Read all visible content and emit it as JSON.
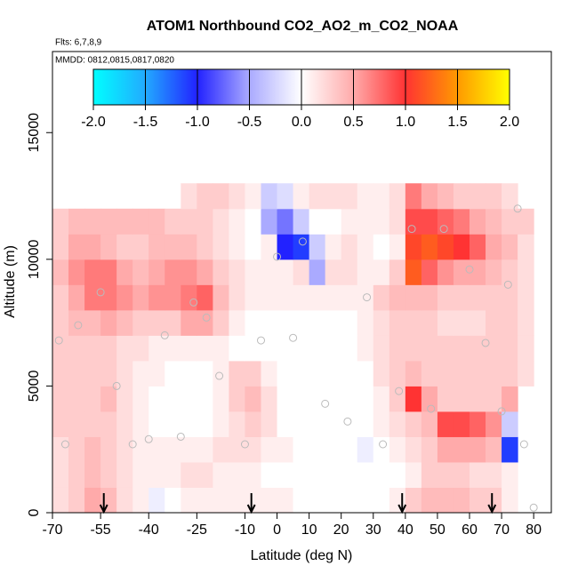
{
  "chart_data": {
    "type": "heatmap",
    "title": "ATOM1 Northbound CO2_AO2_m_CO2_NOAA",
    "subtitle": "Flts: 6,7,8,9",
    "annotation": "MMDD: 0812,0815,0817,0820",
    "x_label": "Latitude (deg N)",
    "y_label": "Altitude (m)",
    "xlim": [
      -70,
      85.5
    ],
    "ylim": [
      0,
      18200
    ],
    "xticks": [
      -70,
      -55,
      -40,
      -25,
      -10,
      0,
      10,
      20,
      30,
      40,
      50,
      60,
      70,
      80
    ],
    "yticks": [
      0,
      5000,
      10000,
      15000
    ],
    "x": [
      -67.5,
      -62.5,
      -57.5,
      -52.5,
      -47.5,
      -42.5,
      -37.5,
      -32.5,
      -27.5,
      -22.5,
      -17.5,
      -12.5,
      -7.5,
      -2.5,
      2.5,
      7.5,
      12.5,
      17.5,
      22.5,
      27.5,
      32.5,
      37.5,
      42.5,
      47.5,
      52.5,
      57.5,
      62.5,
      67.5,
      72.5,
      77.5
    ],
    "y": [
      500,
      1500,
      2500,
      3500,
      4500,
      5500,
      6500,
      7500,
      8500,
      9500,
      10500,
      11500,
      12500
    ],
    "z": [
      [
        0.2,
        0.3,
        0.5,
        0.4,
        0.2,
        0.1,
        -0.1,
        0,
        0.1,
        0.1,
        0.1,
        0.1,
        0.1,
        0.1,
        0.1,
        0,
        0,
        0,
        0,
        0,
        0,
        0.1,
        0.3,
        0.4,
        0.4,
        0.4,
        0.3,
        0.3,
        0.1,
        null
      ],
      [
        0.2,
        0.3,
        0.4,
        0.3,
        0.2,
        0.1,
        0.1,
        0.1,
        0.2,
        0.2,
        0.1,
        0.1,
        0.1,
        0,
        0,
        0,
        0,
        0,
        0,
        0,
        0,
        0,
        0.1,
        0.3,
        0.3,
        0.3,
        0.2,
        0.2,
        0.1,
        null
      ],
      [
        0.2,
        0.3,
        0.4,
        0.3,
        0.2,
        0.1,
        0.1,
        0.1,
        0.1,
        0.1,
        0.2,
        0.2,
        0.2,
        0.1,
        0.1,
        0,
        0,
        0,
        0,
        -0.1,
        0,
        0.1,
        0.2,
        0.3,
        0.5,
        0.5,
        0.5,
        0.4,
        -1.1,
        null
      ],
      [
        0.3,
        0.3,
        0.3,
        0.3,
        0.2,
        0.1,
        0,
        0,
        0,
        0,
        0.1,
        0.2,
        0.3,
        0.2,
        0,
        0,
        0,
        0,
        0,
        0,
        0.1,
        0.2,
        0.3,
        0.4,
        0.9,
        0.9,
        0.8,
        0.6,
        -0.3,
        null
      ],
      [
        0.3,
        0.3,
        0.3,
        0.4,
        0.2,
        0.1,
        0,
        0,
        0,
        0,
        0.1,
        0.3,
        0.4,
        0.2,
        0,
        0,
        0,
        0,
        0,
        0,
        0.1,
        0.3,
        1,
        0.5,
        0.3,
        0.3,
        0.3,
        0.3,
        0.5,
        null
      ],
      [
        0.3,
        0.3,
        0.3,
        0.3,
        0.2,
        0.1,
        0.1,
        0,
        0,
        0,
        0.1,
        0.3,
        0.3,
        0.1,
        0,
        0,
        0,
        0,
        0,
        0,
        0.2,
        0.3,
        0.4,
        0.3,
        0.3,
        0.3,
        0.3,
        0.3,
        0.3,
        0.2
      ],
      [
        0.3,
        0.3,
        0.3,
        0.3,
        0.2,
        0.2,
        0.1,
        0.1,
        0.1,
        0.1,
        0.1,
        0,
        0,
        0,
        0,
        0,
        0,
        0,
        0,
        0.1,
        0.2,
        0.3,
        0.3,
        0.3,
        0.3,
        0.3,
        0.3,
        0.3,
        0.3,
        0.2
      ],
      [
        0.3,
        0.4,
        0.4,
        0.5,
        0.4,
        0.3,
        0.3,
        0.3,
        0.5,
        0.5,
        0.3,
        0.1,
        0,
        0,
        0,
        0,
        0,
        0,
        0,
        0.1,
        0.2,
        0.3,
        0.3,
        0.3,
        0.2,
        0.2,
        0.2,
        0.3,
        0.3,
        0.2
      ],
      [
        0.3,
        0.5,
        0.7,
        0.7,
        0.6,
        0.5,
        0.6,
        0.6,
        0.7,
        0.8,
        0.4,
        0.2,
        0.1,
        0.1,
        0.1,
        0.1,
        0.1,
        0.1,
        0.1,
        0.1,
        0.3,
        0.4,
        0.4,
        0.4,
        0.3,
        0.3,
        0.3,
        0.3,
        0.3,
        0.2
      ],
      [
        0.4,
        0.6,
        0.7,
        0.7,
        0.5,
        0.4,
        0.5,
        0.6,
        0.6,
        0.5,
        0.3,
        0.2,
        0.1,
        0.1,
        0.1,
        0.2,
        -0.5,
        0.2,
        0.2,
        0.1,
        0.1,
        0.3,
        1.2,
        0.8,
        0.6,
        0.5,
        0.5,
        0.4,
        0.3,
        0.2
      ],
      [
        0.3,
        0.5,
        0.5,
        0.4,
        0.3,
        0.3,
        0.4,
        0.4,
        0.4,
        0.3,
        0.2,
        0.1,
        0,
        0.1,
        -1,
        -1.1,
        -0.3,
        0.1,
        0.2,
        0.1,
        0,
        0.1,
        1.1,
        1.2,
        1.1,
        1,
        0.8,
        0.5,
        0.4,
        0.2
      ],
      [
        0.3,
        0.4,
        0.4,
        0.4,
        0.4,
        0.4,
        0.4,
        0.3,
        0.3,
        0.3,
        0.2,
        0.1,
        0,
        -0.5,
        -0.7,
        -0.3,
        0,
        0,
        0.1,
        0.1,
        0.1,
        0.2,
        0.9,
        0.9,
        0.8,
        0.7,
        0.5,
        0.4,
        0.3,
        0.3
      ],
      [
        null,
        null,
        null,
        null,
        null,
        null,
        null,
        null,
        0.2,
        0.3,
        0.3,
        0.2,
        0.1,
        -0.3,
        -0.2,
        0.1,
        0.2,
        0.2,
        0.2,
        0.1,
        0.1,
        0.2,
        0.7,
        0.5,
        0.4,
        0.3,
        0.3,
        0.3,
        0.2,
        null
      ]
    ],
    "clim": [
      -2,
      2
    ],
    "colorscale": {
      "values": [
        -2,
        -1.5,
        -1,
        -0.5,
        0,
        0.5,
        1,
        1.5,
        2
      ],
      "colors": [
        "#00ffff",
        "#22aaff",
        "#2222ff",
        "#aaaaff",
        "#ffffff",
        "#ffaaaa",
        "#ff3333",
        "#ff9900",
        "#ffff00"
      ]
    },
    "colorbar_ticks": [
      {
        "value": -2,
        "label": "-2.0"
      },
      {
        "value": -1.5,
        "label": "-1.5"
      },
      {
        "value": -1,
        "label": "-1.0"
      },
      {
        "value": -0.5,
        "label": "-0.5"
      },
      {
        "value": 0,
        "label": "0.0"
      },
      {
        "value": 0.5,
        "label": "0.5"
      },
      {
        "value": 1,
        "label": "1.0"
      },
      {
        "value": 1.5,
        "label": "1.5"
      },
      {
        "value": 2,
        "label": "2.0"
      }
    ],
    "points": {
      "x": [
        -68,
        -66,
        -62,
        -55,
        -50,
        -45,
        -40,
        -35,
        -30,
        -26,
        -22,
        -18,
        -10,
        -5,
        0,
        5,
        8,
        15,
        22,
        28,
        33,
        38,
        42,
        48,
        52,
        60,
        65,
        70,
        72,
        75,
        77,
        80
      ],
      "y": [
        6800,
        2700,
        7400,
        8700,
        5000,
        2700,
        2900,
        7000,
        3000,
        8300,
        7700,
        5400,
        2700,
        6800,
        10100,
        6900,
        10700,
        4300,
        3600,
        8500,
        2700,
        4800,
        11200,
        4100,
        11200,
        9600,
        6700,
        4000,
        9000,
        12000,
        2700,
        200
      ]
    },
    "arrows": [
      -54,
      -8,
      39,
      67
    ]
  }
}
